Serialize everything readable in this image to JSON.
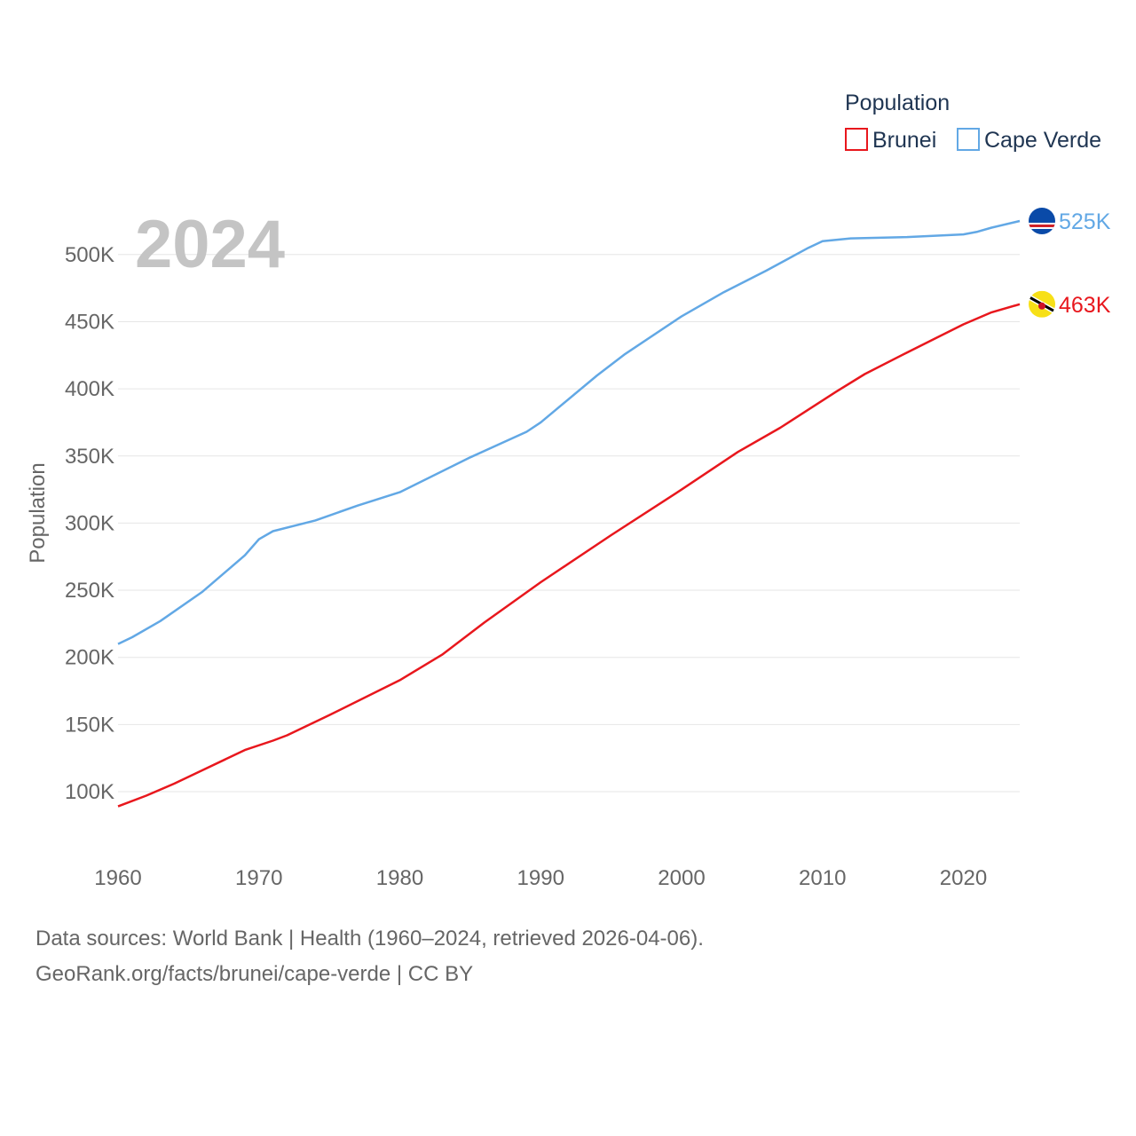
{
  "chart_data": {
    "type": "line",
    "title": "Population",
    "ylabel": "Population",
    "xlabel": "",
    "year_display": "2024",
    "xlim": [
      1960,
      2024
    ],
    "ylim": [
      80000,
      540000
    ],
    "x_ticks": [
      1960,
      1970,
      1980,
      1990,
      2000,
      2010,
      2020
    ],
    "y_ticks": [
      {
        "value": 100000,
        "label": "100K"
      },
      {
        "value": 150000,
        "label": "150K"
      },
      {
        "value": 200000,
        "label": "200K"
      },
      {
        "value": 250000,
        "label": "250K"
      },
      {
        "value": 300000,
        "label": "300K"
      },
      {
        "value": 350000,
        "label": "350K"
      },
      {
        "value": 400000,
        "label": "400K"
      },
      {
        "value": 450000,
        "label": "450K"
      },
      {
        "value": 500000,
        "label": "500K"
      }
    ],
    "series": [
      {
        "name": "Brunei",
        "color": "#e8171d",
        "end_label": "463K",
        "flag_icon": "brunei-flag-icon",
        "points": [
          [
            1960,
            89000
          ],
          [
            1962,
            97000
          ],
          [
            1964,
            106000
          ],
          [
            1966,
            116000
          ],
          [
            1969,
            131000
          ],
          [
            1971,
            138000
          ],
          [
            1972,
            142000
          ],
          [
            1975,
            157000
          ],
          [
            1980,
            183000
          ],
          [
            1983,
            202000
          ],
          [
            1986,
            226000
          ],
          [
            1990,
            256000
          ],
          [
            1995,
            291000
          ],
          [
            2000,
            325000
          ],
          [
            2004,
            353000
          ],
          [
            2007,
            371000
          ],
          [
            2011,
            398000
          ],
          [
            2013,
            411000
          ],
          [
            2016,
            427000
          ],
          [
            2020,
            448000
          ],
          [
            2022,
            457000
          ],
          [
            2024,
            463000
          ]
        ]
      },
      {
        "name": "Cape Verde",
        "color": "#62a8e5",
        "end_label": "525K",
        "flag_icon": "cape-verde-flag-icon",
        "points": [
          [
            1960,
            210000
          ],
          [
            1961,
            215000
          ],
          [
            1963,
            227000
          ],
          [
            1966,
            249000
          ],
          [
            1969,
            276000
          ],
          [
            1970,
            288000
          ],
          [
            1971,
            294000
          ],
          [
            1974,
            302000
          ],
          [
            1977,
            313000
          ],
          [
            1980,
            323000
          ],
          [
            1985,
            349000
          ],
          [
            1989,
            368000
          ],
          [
            1990,
            375000
          ],
          [
            1994,
            410000
          ],
          [
            1996,
            426000
          ],
          [
            2000,
            454000
          ],
          [
            2003,
            472000
          ],
          [
            2006,
            488000
          ],
          [
            2009,
            505000
          ],
          [
            2010,
            510000
          ],
          [
            2012,
            512000
          ],
          [
            2016,
            513000
          ],
          [
            2020,
            515000
          ],
          [
            2021,
            517000
          ],
          [
            2022,
            520000
          ],
          [
            2024,
            525000
          ]
        ]
      }
    ]
  },
  "legend": {
    "title": "Population",
    "items": [
      {
        "label": "Brunei",
        "color": "#e8171d"
      },
      {
        "label": "Cape Verde",
        "color": "#62a8e5"
      }
    ]
  },
  "footer": {
    "source": "Data sources: World Bank | Health (1960–2024, retrieved 2026-04-06).",
    "credit": "GeoRank.org/facts/brunei/cape-verde | CC BY"
  }
}
